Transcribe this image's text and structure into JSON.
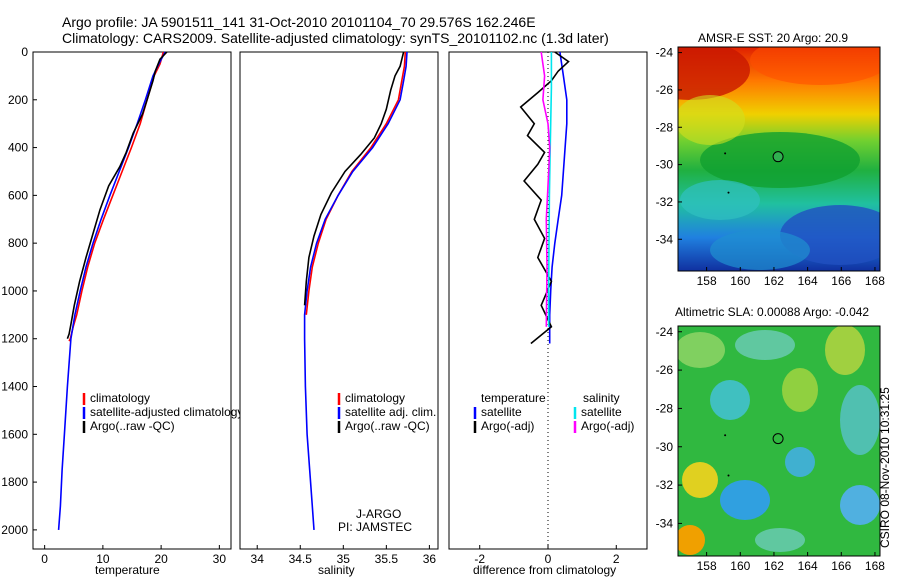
{
  "header": {
    "line1": "Argo profile: JA 5901511_141 31-Oct-2010 20101104_70 29.576S 162.246E",
    "line2": "Climatology: CARS2009. Satellite-adjusted climatology: synTS_20101102.nc (1.3d later)"
  },
  "side_stamp": "CSIRO 08-Nov-2010 10:31:25",
  "colors": {
    "climatology": "#ff0000",
    "satellite": "#0000ff",
    "argo": "#000000",
    "cyan": "#00e5ee",
    "magenta": "#ff00ff"
  },
  "chart_data": [
    {
      "type": "line",
      "id": "temperature",
      "xlabel": "temperature",
      "ylabel": "",
      "xlim": [
        -2,
        32
      ],
      "ylim": [
        2080,
        0
      ],
      "xticks": [
        0,
        10,
        20,
        30
      ],
      "yticks": [
        0,
        200,
        400,
        600,
        800,
        1000,
        1200,
        1400,
        1600,
        1800,
        2000
      ],
      "legend": {
        "position": "lower-right",
        "entries": [
          "climatology",
          "satellite-adjusted climatology",
          "Argo(..raw -QC)"
        ]
      },
      "series": [
        {
          "name": "climatology",
          "color": "#ff0000",
          "x": [
            20.4,
            19.8,
            18.8,
            17.6,
            16.4,
            14.9,
            13.3,
            11.7,
            10.1,
            8.6,
            7.4,
            6.4,
            5.5,
            4.9,
            4.4,
            4.2
          ],
          "y": [
            0,
            50,
            100,
            200,
            300,
            400,
            500,
            600,
            700,
            800,
            900,
            1000,
            1100,
            1150,
            1200,
            1210
          ]
        },
        {
          "name": "satellite-adjusted climatology",
          "color": "#0000ff",
          "x": [
            20.7,
            19.6,
            18.6,
            17.3,
            15.9,
            14.4,
            12.8,
            11.2,
            9.7,
            8.3,
            7.1,
            6.1,
            5.2,
            4.5,
            3.9,
            3.4,
            3.0,
            2.7,
            2.4
          ],
          "y": [
            0,
            50,
            100,
            200,
            300,
            400,
            500,
            600,
            700,
            800,
            900,
            1000,
            1100,
            1200,
            1400,
            1600,
            1750,
            1900,
            2000
          ]
        },
        {
          "name": "Argo(..raw -QC)",
          "color": "#000000",
          "x": [
            21.0,
            19.8,
            19.0,
            18.6,
            17.6,
            16.8,
            15.2,
            14.0,
            12.9,
            11.0,
            9.5,
            8.3,
            7.1,
            6.0,
            5.1,
            4.5,
            4.2,
            3.9
          ],
          "y": [
            0,
            30,
            80,
            120,
            200,
            260,
            340,
            420,
            480,
            560,
            660,
            760,
            860,
            960,
            1060,
            1140,
            1180,
            1200
          ]
        }
      ],
      "annotations": []
    },
    {
      "type": "line",
      "id": "salinity",
      "xlabel": "salinity",
      "ylabel": "",
      "xlim": [
        33.8,
        36.1
      ],
      "ylim": [
        2080,
        0
      ],
      "xticks": [
        34,
        34.5,
        35,
        35.5,
        36
      ],
      "yticks": [],
      "legend": {
        "position": "lower-right",
        "entries": [
          "climatology",
          "satellite adj. clim.",
          "Argo(..raw -QC)"
        ]
      },
      "series": [
        {
          "name": "climatology",
          "color": "#ff0000",
          "x": [
            35.72,
            35.71,
            35.68,
            35.64,
            35.5,
            35.32,
            35.1,
            34.94,
            34.8,
            34.71,
            34.64,
            34.6,
            34.57
          ],
          "y": [
            0,
            60,
            120,
            200,
            300,
            400,
            500,
            600,
            700,
            800,
            900,
            1000,
            1100
          ]
        },
        {
          "name": "satellite adj. clim.",
          "color": "#0000ff",
          "x": [
            35.74,
            35.73,
            35.7,
            35.66,
            35.52,
            35.34,
            35.11,
            34.94,
            34.79,
            34.69,
            34.62,
            34.58,
            34.55,
            34.55,
            34.56,
            34.58,
            34.61,
            34.64,
            34.66
          ],
          "y": [
            0,
            60,
            120,
            200,
            300,
            400,
            500,
            600,
            700,
            800,
            900,
            1000,
            1100,
            1200,
            1400,
            1600,
            1750,
            1900,
            2000
          ]
        },
        {
          "name": "Argo(..raw -QC)",
          "color": "#000000",
          "x": [
            35.7,
            35.66,
            35.6,
            35.55,
            35.5,
            35.44,
            35.36,
            35.2,
            35.02,
            34.86,
            34.74,
            34.66,
            34.6,
            34.57,
            34.55
          ],
          "y": [
            0,
            60,
            100,
            160,
            240,
            300,
            360,
            430,
            500,
            590,
            680,
            770,
            860,
            960,
            1060
          ]
        }
      ],
      "annotations": [
        "J-ARGO",
        "PI: JAMSTEC"
      ]
    },
    {
      "type": "line",
      "id": "difference",
      "xlabel": "difference from climatology",
      "ylabel": "",
      "xlim": [
        -2.9,
        2.9
      ],
      "ylim": [
        2080,
        0
      ],
      "xticks": [
        -2,
        0,
        2
      ],
      "yticks": [],
      "legend": {
        "position": "middle",
        "temperature_header": "temperature",
        "salinity_header": "salinity",
        "entries": [
          "satellite",
          "Argo(-adj)",
          "satellite",
          "Argo(-adj)"
        ]
      },
      "series": [
        {
          "name": "satellite",
          "color": "#0000ff",
          "x": [
            0.35,
            0.45,
            0.55,
            0.55,
            0.5,
            0.45,
            0.4,
            0.3,
            0.2,
            0.12,
            0.08,
            0.05,
            0.05
          ],
          "y": [
            0,
            100,
            200,
            300,
            400,
            500,
            600,
            700,
            800,
            900,
            1000,
            1100,
            1220
          ]
        },
        {
          "name": "Argo(-adj)",
          "color": "#000000",
          "x": [
            0.2,
            0.6,
            0.3,
            0.1,
            -0.3,
            -0.8,
            -0.4,
            -0.6,
            -0.1,
            -0.3,
            -0.7,
            -0.2,
            -0.4,
            -0.1,
            -0.3,
            0.1,
            -0.2,
            0.1,
            -0.5
          ],
          "y": [
            0,
            40,
            80,
            120,
            170,
            230,
            300,
            350,
            420,
            470,
            540,
            620,
            700,
            780,
            860,
            960,
            1060,
            1150,
            1220
          ]
        },
        {
          "name": "satellite",
          "color": "#00e5ee",
          "x": [
            0.1,
            0.1,
            0.08,
            0.06,
            0.04,
            0.03,
            0.02,
            0.02
          ],
          "y": [
            0,
            150,
            300,
            450,
            600,
            800,
            1000,
            1150
          ]
        },
        {
          "name": "Argo(-adj)",
          "color": "#ff00ff",
          "x": [
            -0.2,
            -0.1,
            -0.15,
            0.0,
            0.05,
            0.02,
            -0.05,
            -0.03,
            -0.05
          ],
          "y": [
            0,
            100,
            200,
            300,
            400,
            500,
            700,
            900,
            1150
          ]
        }
      ],
      "annotations": []
    },
    {
      "type": "heatmap",
      "id": "sst",
      "title": "AMSR-E SST: 20 Argo: 20.9",
      "xlim": [
        156.3,
        168.3
      ],
      "ylim": [
        -35.7,
        -23.7
      ],
      "xticks": [
        158,
        160,
        162,
        164,
        166,
        168
      ],
      "yticks": [
        -24,
        -26,
        -28,
        -30,
        -32,
        -34
      ],
      "marker": {
        "lon": 162.246,
        "lat": -29.576
      }
    },
    {
      "type": "heatmap",
      "id": "sla",
      "title": "Altimetric SLA: 0.00088 Argo: -0.042",
      "xlim": [
        156.3,
        168.3
      ],
      "ylim": [
        -35.7,
        -23.7
      ],
      "xticks": [
        158,
        160,
        162,
        164,
        166,
        168
      ],
      "yticks": [
        -24,
        -26,
        -28,
        -30,
        -32,
        -34
      ],
      "marker": {
        "lon": 162.246,
        "lat": -29.576
      }
    }
  ]
}
